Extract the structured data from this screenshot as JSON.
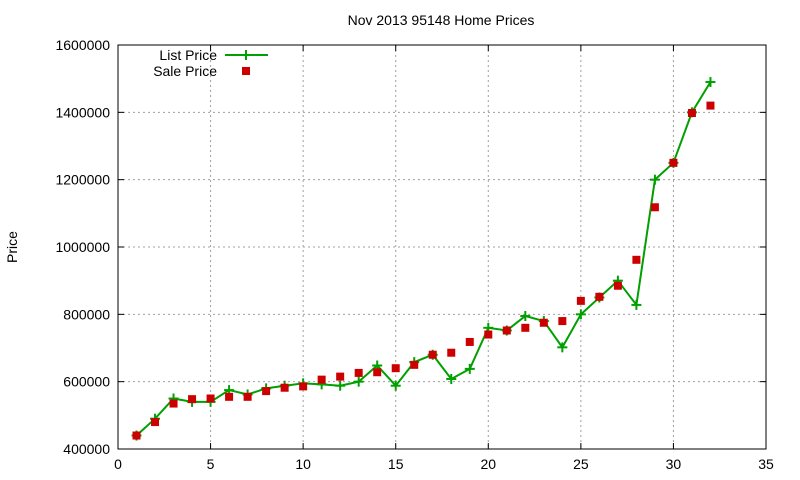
{
  "chart_data": {
    "type": "scatter",
    "title": "Nov 2013 95148 Home Prices",
    "xlabel": "",
    "ylabel": "Price",
    "xlim": [
      0,
      35
    ],
    "ylim": [
      400000,
      1600000
    ],
    "xticks": [
      0,
      5,
      10,
      15,
      20,
      25,
      30,
      35
    ],
    "yticks": [
      400000,
      600000,
      800000,
      1000000,
      1200000,
      1400000,
      1600000
    ],
    "grid": true,
    "legend_position": "top-left",
    "series": [
      {
        "name": "List Price",
        "style": "line-with-plus-markers",
        "color": "#00a000",
        "x": [
          1,
          2,
          3,
          4,
          5,
          6,
          7,
          8,
          9,
          10,
          11,
          12,
          13,
          14,
          15,
          16,
          17,
          18,
          19,
          20,
          21,
          22,
          23,
          24,
          25,
          26,
          27,
          28,
          29,
          30,
          31,
          32
        ],
        "values": [
          440000,
          490000,
          550000,
          540000,
          540000,
          575000,
          562000,
          580000,
          588000,
          595000,
          592000,
          588000,
          600000,
          648000,
          588000,
          658000,
          680000,
          608000,
          638000,
          760000,
          752000,
          795000,
          780000,
          702000,
          800000,
          850000,
          900000,
          828000,
          1200000,
          1250000,
          1400000,
          1490000
        ]
      },
      {
        "name": "Sale Price",
        "style": "square-markers",
        "color": "#cc0000",
        "x": [
          1,
          2,
          3,
          4,
          5,
          6,
          7,
          8,
          9,
          10,
          11,
          12,
          13,
          14,
          15,
          16,
          17,
          18,
          19,
          20,
          21,
          22,
          23,
          24,
          25,
          26,
          27,
          28,
          29,
          30,
          31,
          32
        ],
        "values": [
          440000,
          480000,
          535000,
          548000,
          550000,
          555000,
          555000,
          572000,
          582000,
          586000,
          606000,
          615000,
          626000,
          628000,
          640000,
          650000,
          680000,
          686000,
          718000,
          740000,
          752000,
          760000,
          775000,
          780000,
          840000,
          852000,
          885000,
          962000,
          1118000,
          1250000,
          1398000,
          1420000
        ]
      }
    ]
  }
}
